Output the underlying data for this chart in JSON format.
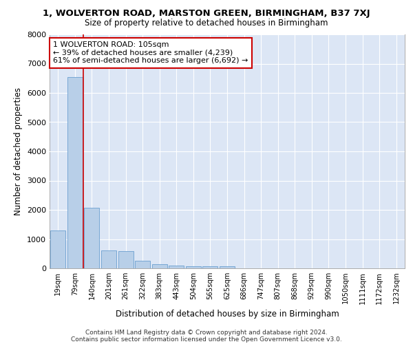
{
  "title_line1": "1, WOLVERTON ROAD, MARSTON GREEN, BIRMINGHAM, B37 7XJ",
  "title_line2": "Size of property relative to detached houses in Birmingham",
  "xlabel": "Distribution of detached houses by size in Birmingham",
  "ylabel": "Number of detached properties",
  "footnote1": "Contains HM Land Registry data © Crown copyright and database right 2024.",
  "footnote2": "Contains public sector information licensed under the Open Government Licence v3.0.",
  "bar_labels": [
    "19sqm",
    "79sqm",
    "140sqm",
    "201sqm",
    "261sqm",
    "322sqm",
    "383sqm",
    "443sqm",
    "504sqm",
    "565sqm",
    "625sqm",
    "686sqm",
    "747sqm",
    "807sqm",
    "868sqm",
    "929sqm",
    "990sqm",
    "1050sqm",
    "1111sqm",
    "1172sqm",
    "1232sqm"
  ],
  "bar_values": [
    1300,
    6550,
    2080,
    620,
    600,
    260,
    130,
    95,
    75,
    70,
    60,
    0,
    0,
    0,
    0,
    0,
    0,
    0,
    0,
    0,
    0
  ],
  "bar_color": "#b8cfe8",
  "bar_edge_color": "#6a9fd0",
  "background_color": "#dce6f5",
  "grid_color": "#ffffff",
  "ylim": [
    0,
    8000
  ],
  "yticks": [
    0,
    1000,
    2000,
    3000,
    4000,
    5000,
    6000,
    7000,
    8000
  ],
  "property_line_color": "#cc0000",
  "annotation_text": "1 WOLVERTON ROAD: 105sqm\n← 39% of detached houses are smaller (4,239)\n61% of semi-detached houses are larger (6,692) →",
  "annotation_box_facecolor": "#ffffff",
  "annotation_box_edgecolor": "#cc0000",
  "annotation_fontsize": 8.0
}
